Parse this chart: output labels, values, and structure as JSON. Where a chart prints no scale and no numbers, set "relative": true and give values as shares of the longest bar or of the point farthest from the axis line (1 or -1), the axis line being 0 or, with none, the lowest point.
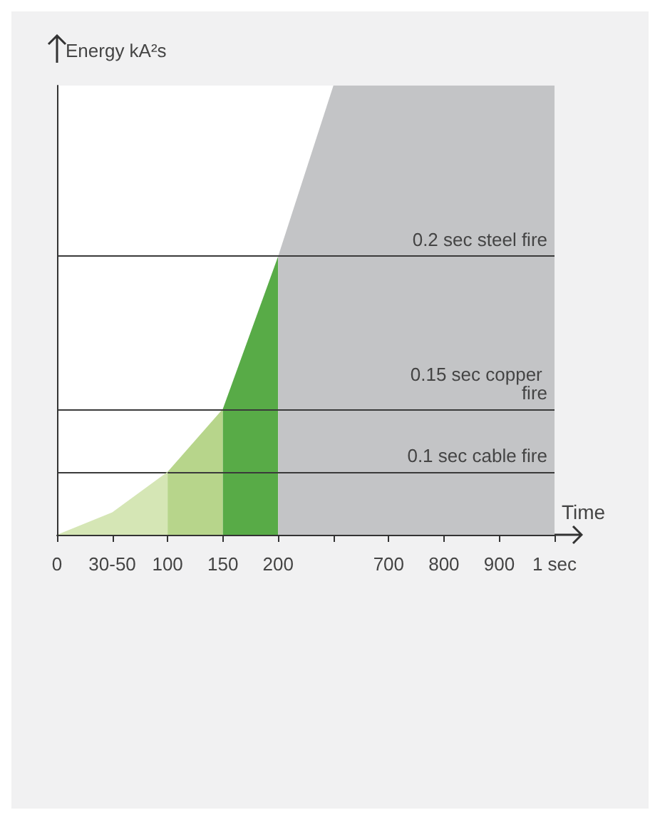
{
  "chart_data": {
    "type": "area",
    "relative": true,
    "xlabel": "Time",
    "ylabel": "Energy kA²s",
    "categories": [
      "0",
      "30-50",
      "100",
      "150",
      "200",
      null,
      "700",
      "800",
      "900",
      "1 sec"
    ],
    "series": [
      {
        "color": "#d5e6b5",
        "values": [
          0,
          0.05,
          0.14,
          null,
          null,
          null,
          null,
          null,
          null,
          null
        ]
      },
      {
        "color": "#b7d58b",
        "values": [
          null,
          null,
          0.14,
          0.28,
          null,
          null,
          null,
          null,
          null,
          null
        ]
      },
      {
        "color": "#58ab47",
        "values": [
          null,
          null,
          null,
          0.28,
          0.62,
          null,
          null,
          null,
          null,
          null
        ]
      },
      {
        "color": "#c3c4c6",
        "values": [
          null,
          null,
          null,
          null,
          0.62,
          1,
          1,
          1,
          1,
          1
        ]
      }
    ],
    "ref_lines": [
      {
        "axis": "y",
        "value": 0.62,
        "label": "0.2 sec steel fire",
        "color": "#3a3a3a"
      },
      {
        "axis": "y",
        "value": 0.28,
        "label": "0.15 sec copper fire",
        "color": "#3a3a3a"
      },
      {
        "axis": "y",
        "value": 0.14,
        "label": "0.1 sec cable fire",
        "color": "#3a3a3a"
      }
    ],
    "grid": false
  }
}
